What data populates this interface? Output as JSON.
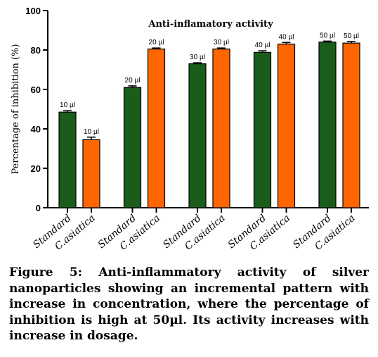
{
  "chart_data": {
    "type": "bar",
    "title": "Anti-inflamatory activity",
    "ylabel": "Percentage of inhibition (%)",
    "xlabel": "",
    "ylim": [
      0,
      100
    ],
    "yticks": [
      0,
      20,
      40,
      60,
      80,
      100
    ],
    "grid": false,
    "bars": [
      {
        "category": "Standard",
        "label": "10 µl",
        "value": 48.5,
        "error": 0.7,
        "color": "#1a5c1a"
      },
      {
        "category": "C.asiatica",
        "label": "10 µl",
        "value": 34.5,
        "error": 1.3,
        "color": "#ff6600"
      },
      {
        "category": "Standard",
        "label": "20 µl",
        "value": 61.0,
        "error": 0.8,
        "color": "#1a5c1a"
      },
      {
        "category": "C.asiatica",
        "label": "20 µl",
        "value": 80.5,
        "error": 0.5,
        "color": "#ff6600"
      },
      {
        "category": "Standard",
        "label": "30 µl",
        "value": 73.0,
        "error": 0.5,
        "color": "#1a5c1a"
      },
      {
        "category": "C.asiatica",
        "label": "30 µl",
        "value": 80.5,
        "error": 0.5,
        "color": "#ff6600"
      },
      {
        "category": "Standard",
        "label": "40 µl",
        "value": 78.8,
        "error": 0.8,
        "color": "#1a5c1a"
      },
      {
        "category": "C.asiatica",
        "label": "40 µl",
        "value": 83.0,
        "error": 0.8,
        "color": "#ff6600"
      },
      {
        "category": "Standard",
        "label": "50 µl",
        "value": 84.0,
        "error": 0.5,
        "color": "#1a5c1a"
      },
      {
        "category": "C.asiatica",
        "label": "50 µl",
        "value": 83.5,
        "error": 0.8,
        "color": "#ff6600"
      }
    ]
  },
  "caption": "Figure 5: Anti-inflammatory activity of silver nanoparticles showing an incremental pattern with increase in concentration, where the percentage of inhibition is high at 50µl. Its activity increases with increase in dosage."
}
